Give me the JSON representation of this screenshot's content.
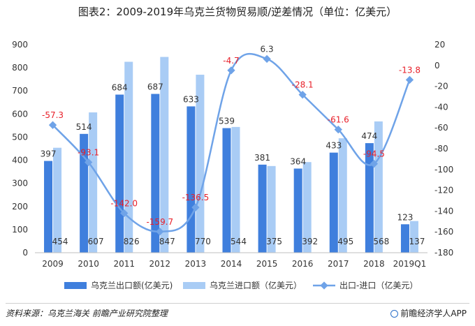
{
  "title": "图表2：2009-2019年乌克兰货物贸易顺/逆差情况（单位：亿美元）",
  "source": "资料来源：乌克兰海关 前瞻产业研究院整理",
  "brand": "前瞻经济学人APP",
  "colors": {
    "export": "#3f7fdd",
    "import": "#a9ccf5",
    "balance_line": "#6fa3e8",
    "balance_label": "#e8202a",
    "axis_text": "#333333"
  },
  "chart_data": {
    "type": "bar",
    "categories": [
      "2009",
      "2010",
      "2011",
      "2012",
      "2013",
      "2014",
      "2015",
      "2016",
      "2017",
      "2018",
      "2019Q1"
    ],
    "series": [
      {
        "name": "乌克兰出口额(亿美元)",
        "type": "bar",
        "axis": "left",
        "values": [
          397,
          514,
          684,
          687,
          633,
          539,
          381,
          364,
          433,
          474,
          123
        ]
      },
      {
        "name": "乌克兰进口额（亿美元）",
        "type": "bar",
        "axis": "left",
        "values": [
          454,
          607,
          826,
          847,
          770,
          544,
          375,
          392,
          495,
          568,
          137
        ]
      },
      {
        "name": "出口-进口（亿美元）",
        "type": "line",
        "axis": "right",
        "values": [
          -57.3,
          -93.1,
          -142.0,
          -159.7,
          -136.5,
          -4.7,
          6.3,
          -28.1,
          -61.6,
          -94.5,
          -13.8
        ]
      }
    ],
    "bar_labels_export": [
      "397",
      "514",
      "684",
      "687",
      "633",
      "539",
      "381",
      "364",
      "433",
      "474",
      "123"
    ],
    "bar_labels_import": [
      "454",
      "607",
      "826",
      "847",
      "770",
      "544",
      "375",
      "392",
      "495",
      "568",
      "137"
    ],
    "line_labels": [
      "-57.3",
      "-93.1",
      "-142.0",
      "-159.7",
      "-136.5",
      "-4.7",
      "6.3",
      "-28.1",
      "-61.6",
      "-94.5",
      "-13.8"
    ],
    "ylim_left": [
      0,
      900
    ],
    "yticks_left": [
      0,
      100,
      200,
      300,
      400,
      500,
      600,
      700,
      800,
      900
    ],
    "ylim_right": [
      -180,
      20
    ],
    "yticks_right": [
      -180,
      -160,
      -140,
      -120,
      -100,
      -80,
      -60,
      -40,
      -20,
      0,
      20
    ],
    "legend_position": "bottom",
    "grid": false
  }
}
